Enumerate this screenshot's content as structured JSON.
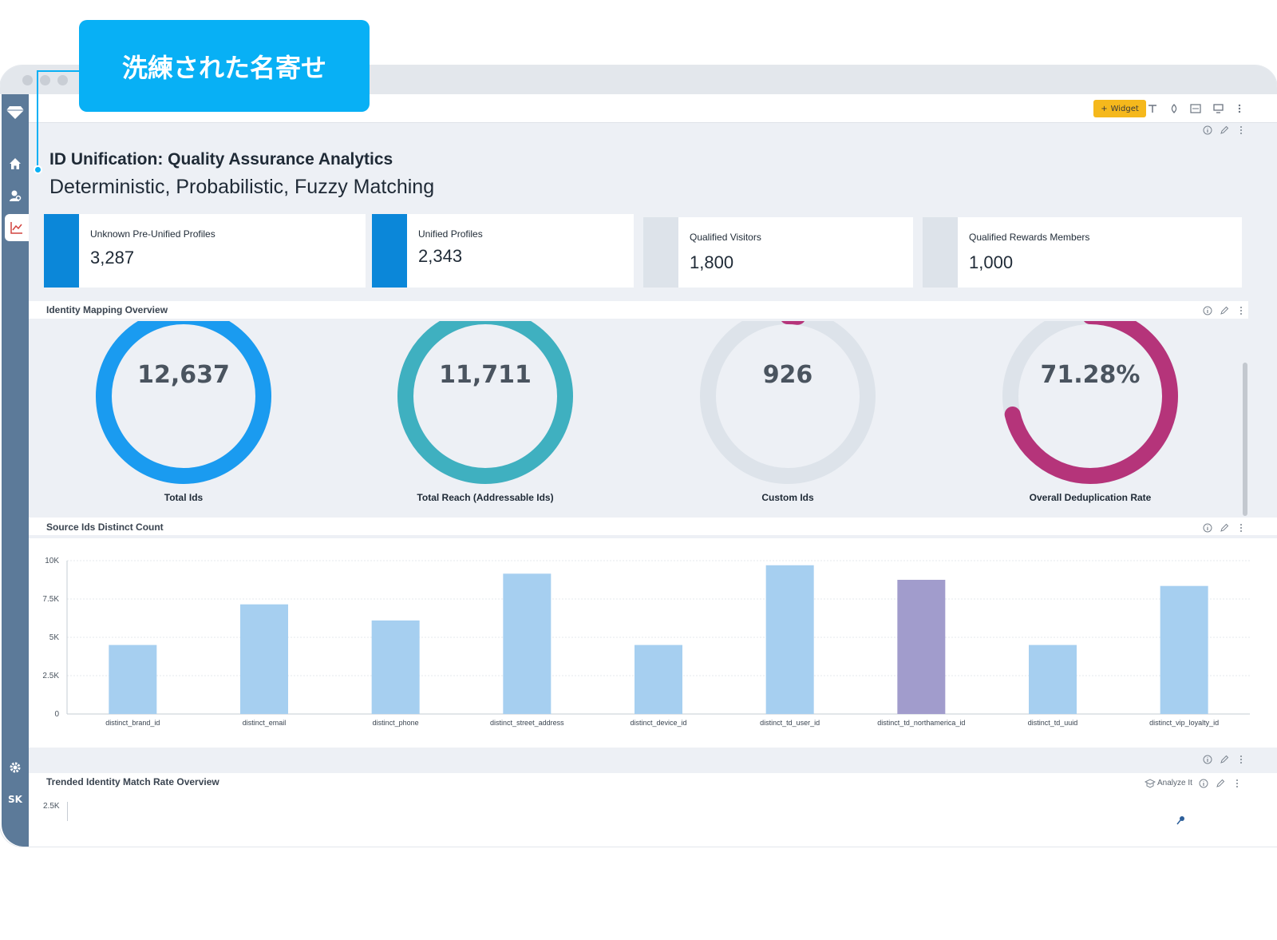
{
  "callout": {
    "text": "洗練された名寄せ"
  },
  "toolbar": {
    "widget_label": "Widget"
  },
  "sidebar": {
    "user_initials": "SK"
  },
  "dashboard": {
    "title": "ID Unification: Quality Assurance Analytics",
    "subtitle": "Deterministic, Probabilistic, Fuzzy Matching"
  },
  "kpis": [
    {
      "label": "Unknown Pre-Unified Profiles",
      "value": "3,287",
      "color": "#0b87d9"
    },
    {
      "label": "Unified Profiles",
      "value": "2,343",
      "color": "#0b87d9"
    },
    {
      "label": "Qualified Visitors",
      "value": "1,800",
      "color": "#dde3ea"
    },
    {
      "label": "Qualified Rewards Members",
      "value": "1,000",
      "color": "#dde3ea"
    }
  ],
  "identity_overview": {
    "title": "Identity Mapping Overview",
    "donuts": [
      {
        "value": "12,637",
        "label": "Total Ids",
        "color": "#1a9bf0",
        "fraction": 1.0
      },
      {
        "value": "11,711",
        "label": "Total Reach (Addressable Ids)",
        "color": "#3fb0c0",
        "fraction": 1.0
      },
      {
        "value": "926",
        "label": "Custom Ids",
        "color": "#b5347a",
        "fraction": 0.02
      },
      {
        "value": "71.28%",
        "label": "Overall Deduplication Rate",
        "color": "#b5347a",
        "fraction": 0.7128
      }
    ]
  },
  "chart_data": {
    "type": "bar",
    "title": "Source Ids Distinct Count",
    "categories": [
      "distinct_brand_id",
      "distinct_email",
      "distinct_phone",
      "distinct_street_address",
      "distinct_device_id",
      "distinct_td_user_id",
      "distinct_td_northamerica_id",
      "distinct_td_uuid",
      "distinct_vip_loyalty_id"
    ],
    "values": [
      4500,
      7150,
      6100,
      9150,
      4500,
      9700,
      8750,
      4500,
      8350
    ],
    "colors": [
      "#a6cff0",
      "#a6cff0",
      "#a6cff0",
      "#a6cff0",
      "#a6cff0",
      "#a6cff0",
      "#a19ccc",
      "#a6cff0",
      "#a6cff0"
    ],
    "ylim": [
      0,
      10000
    ],
    "yticks": [
      "0",
      "2.5K",
      "5K",
      "7.5K",
      "10K"
    ],
    "grid": true
  },
  "trend": {
    "title": "Trended Identity Match Rate Overview",
    "analyze_label": "Analyze It",
    "ytick_top": "2.5K"
  }
}
